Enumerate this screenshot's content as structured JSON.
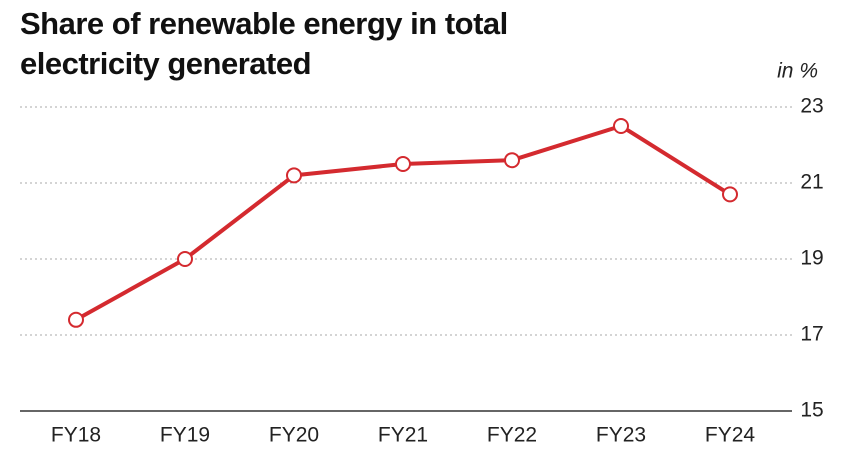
{
  "chart_data": {
    "type": "line",
    "title": "Share of renewable energy in total electricity generated",
    "y_label": "in %",
    "categories": [
      "FY18",
      "FY19",
      "FY20",
      "FY21",
      "FY22",
      "FY23",
      "FY24"
    ],
    "series": [
      {
        "name": "Share of renewable energy",
        "color": "#d42a2f",
        "values": [
          17.4,
          19.0,
          21.2,
          21.5,
          21.6,
          22.5,
          20.7
        ]
      }
    ],
    "ylim": [
      15,
      23
    ],
    "yticks": [
      15,
      17,
      19,
      21,
      23
    ],
    "grid": true
  }
}
